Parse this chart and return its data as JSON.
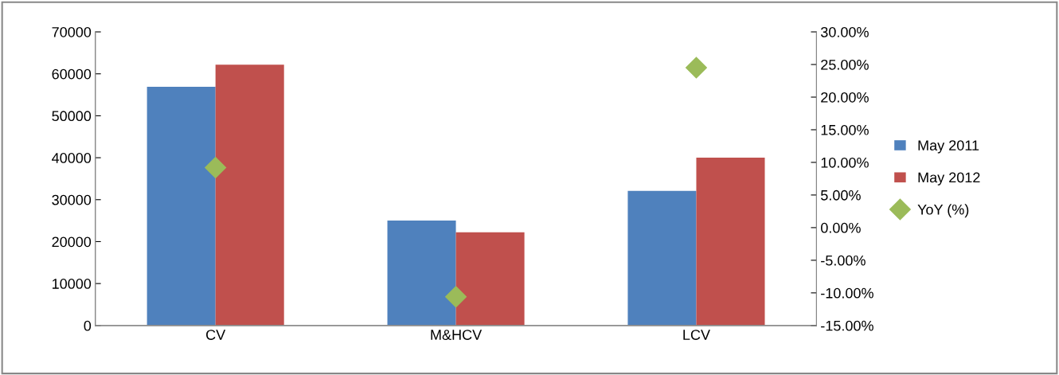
{
  "chart_data": {
    "type": "bar",
    "categories": [
      "CV",
      "M&HCV",
      "LCV"
    ],
    "series": [
      {
        "name": "May 2011",
        "color": "#4f81bd",
        "values": [
          56900,
          25000,
          32100
        ]
      },
      {
        "name": "May 2012",
        "color": "#c0504d",
        "values": [
          62200,
          22200,
          40000
        ]
      },
      {
        "name": "YoY (%)",
        "type": "scatter",
        "axis": "y2",
        "color": "#9bbb59",
        "marker": "diamond",
        "values": [
          9.2,
          -10.6,
          24.5
        ]
      }
    ],
    "ylim": [
      0,
      70000
    ],
    "yticks": [
      0,
      10000,
      20000,
      30000,
      40000,
      50000,
      60000,
      70000
    ],
    "y2lim": [
      -15,
      30
    ],
    "y2ticks": [
      {
        "value": -15,
        "label": "-15.00%"
      },
      {
        "value": -10,
        "label": "-10.00%"
      },
      {
        "value": -5,
        "label": "-5.00%"
      },
      {
        "value": 0,
        "label": "0.00%"
      },
      {
        "value": 5,
        "label": "5.00%"
      },
      {
        "value": 10,
        "label": "10.00%"
      },
      {
        "value": 15,
        "label": "15.00%"
      },
      {
        "value": 20,
        "label": "20.00%"
      },
      {
        "value": 25,
        "label": "25.00%"
      },
      {
        "value": 30,
        "label": "30.00%"
      }
    ],
    "grid": false,
    "legend": "right"
  }
}
